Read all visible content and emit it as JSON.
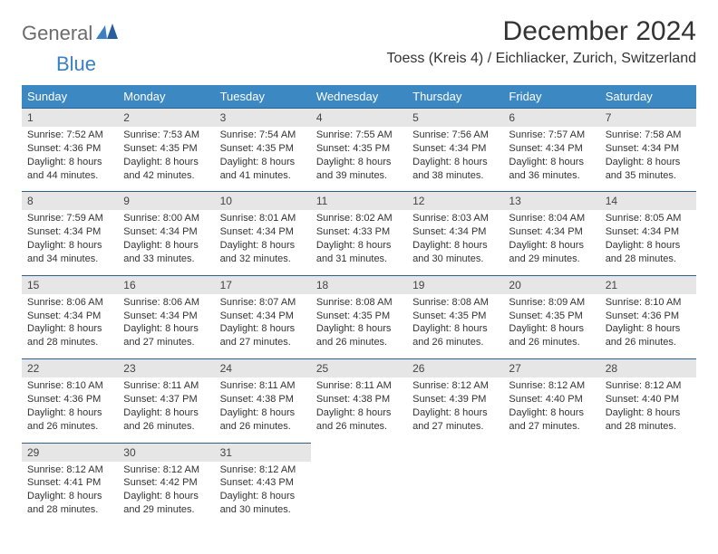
{
  "logo": {
    "part1": "General",
    "part2": "Blue"
  },
  "title": "December 2024",
  "subtitle": "Toess (Kreis 4) / Eichliacker, Zurich, Switzerland",
  "colors": {
    "header_bg": "#3b88c3",
    "header_text": "#ffffff",
    "daynum_bg": "#e6e6e6",
    "daynum_border": "#2f5f8a",
    "logo_gray": "#6b6b6b",
    "logo_blue": "#3b7fc4"
  },
  "daysOfWeek": [
    "Sunday",
    "Monday",
    "Tuesday",
    "Wednesday",
    "Thursday",
    "Friday",
    "Saturday"
  ],
  "weeks": [
    [
      {
        "n": "1",
        "sr": "7:52 AM",
        "ss": "4:36 PM",
        "dl": "8 hours and 44 minutes."
      },
      {
        "n": "2",
        "sr": "7:53 AM",
        "ss": "4:35 PM",
        "dl": "8 hours and 42 minutes."
      },
      {
        "n": "3",
        "sr": "7:54 AM",
        "ss": "4:35 PM",
        "dl": "8 hours and 41 minutes."
      },
      {
        "n": "4",
        "sr": "7:55 AM",
        "ss": "4:35 PM",
        "dl": "8 hours and 39 minutes."
      },
      {
        "n": "5",
        "sr": "7:56 AM",
        "ss": "4:34 PM",
        "dl": "8 hours and 38 minutes."
      },
      {
        "n": "6",
        "sr": "7:57 AM",
        "ss": "4:34 PM",
        "dl": "8 hours and 36 minutes."
      },
      {
        "n": "7",
        "sr": "7:58 AM",
        "ss": "4:34 PM",
        "dl": "8 hours and 35 minutes."
      }
    ],
    [
      {
        "n": "8",
        "sr": "7:59 AM",
        "ss": "4:34 PM",
        "dl": "8 hours and 34 minutes."
      },
      {
        "n": "9",
        "sr": "8:00 AM",
        "ss": "4:34 PM",
        "dl": "8 hours and 33 minutes."
      },
      {
        "n": "10",
        "sr": "8:01 AM",
        "ss": "4:34 PM",
        "dl": "8 hours and 32 minutes."
      },
      {
        "n": "11",
        "sr": "8:02 AM",
        "ss": "4:33 PM",
        "dl": "8 hours and 31 minutes."
      },
      {
        "n": "12",
        "sr": "8:03 AM",
        "ss": "4:34 PM",
        "dl": "8 hours and 30 minutes."
      },
      {
        "n": "13",
        "sr": "8:04 AM",
        "ss": "4:34 PM",
        "dl": "8 hours and 29 minutes."
      },
      {
        "n": "14",
        "sr": "8:05 AM",
        "ss": "4:34 PM",
        "dl": "8 hours and 28 minutes."
      }
    ],
    [
      {
        "n": "15",
        "sr": "8:06 AM",
        "ss": "4:34 PM",
        "dl": "8 hours and 28 minutes."
      },
      {
        "n": "16",
        "sr": "8:06 AM",
        "ss": "4:34 PM",
        "dl": "8 hours and 27 minutes."
      },
      {
        "n": "17",
        "sr": "8:07 AM",
        "ss": "4:34 PM",
        "dl": "8 hours and 27 minutes."
      },
      {
        "n": "18",
        "sr": "8:08 AM",
        "ss": "4:35 PM",
        "dl": "8 hours and 26 minutes."
      },
      {
        "n": "19",
        "sr": "8:08 AM",
        "ss": "4:35 PM",
        "dl": "8 hours and 26 minutes."
      },
      {
        "n": "20",
        "sr": "8:09 AM",
        "ss": "4:35 PM",
        "dl": "8 hours and 26 minutes."
      },
      {
        "n": "21",
        "sr": "8:10 AM",
        "ss": "4:36 PM",
        "dl": "8 hours and 26 minutes."
      }
    ],
    [
      {
        "n": "22",
        "sr": "8:10 AM",
        "ss": "4:36 PM",
        "dl": "8 hours and 26 minutes."
      },
      {
        "n": "23",
        "sr": "8:11 AM",
        "ss": "4:37 PM",
        "dl": "8 hours and 26 minutes."
      },
      {
        "n": "24",
        "sr": "8:11 AM",
        "ss": "4:38 PM",
        "dl": "8 hours and 26 minutes."
      },
      {
        "n": "25",
        "sr": "8:11 AM",
        "ss": "4:38 PM",
        "dl": "8 hours and 26 minutes."
      },
      {
        "n": "26",
        "sr": "8:12 AM",
        "ss": "4:39 PM",
        "dl": "8 hours and 27 minutes."
      },
      {
        "n": "27",
        "sr": "8:12 AM",
        "ss": "4:40 PM",
        "dl": "8 hours and 27 minutes."
      },
      {
        "n": "28",
        "sr": "8:12 AM",
        "ss": "4:40 PM",
        "dl": "8 hours and 28 minutes."
      }
    ],
    [
      {
        "n": "29",
        "sr": "8:12 AM",
        "ss": "4:41 PM",
        "dl": "8 hours and 28 minutes."
      },
      {
        "n": "30",
        "sr": "8:12 AM",
        "ss": "4:42 PM",
        "dl": "8 hours and 29 minutes."
      },
      {
        "n": "31",
        "sr": "8:12 AM",
        "ss": "4:43 PM",
        "dl": "8 hours and 30 minutes."
      },
      null,
      null,
      null,
      null
    ]
  ],
  "labels": {
    "sunrise": "Sunrise:",
    "sunset": "Sunset:",
    "daylight": "Daylight:"
  }
}
